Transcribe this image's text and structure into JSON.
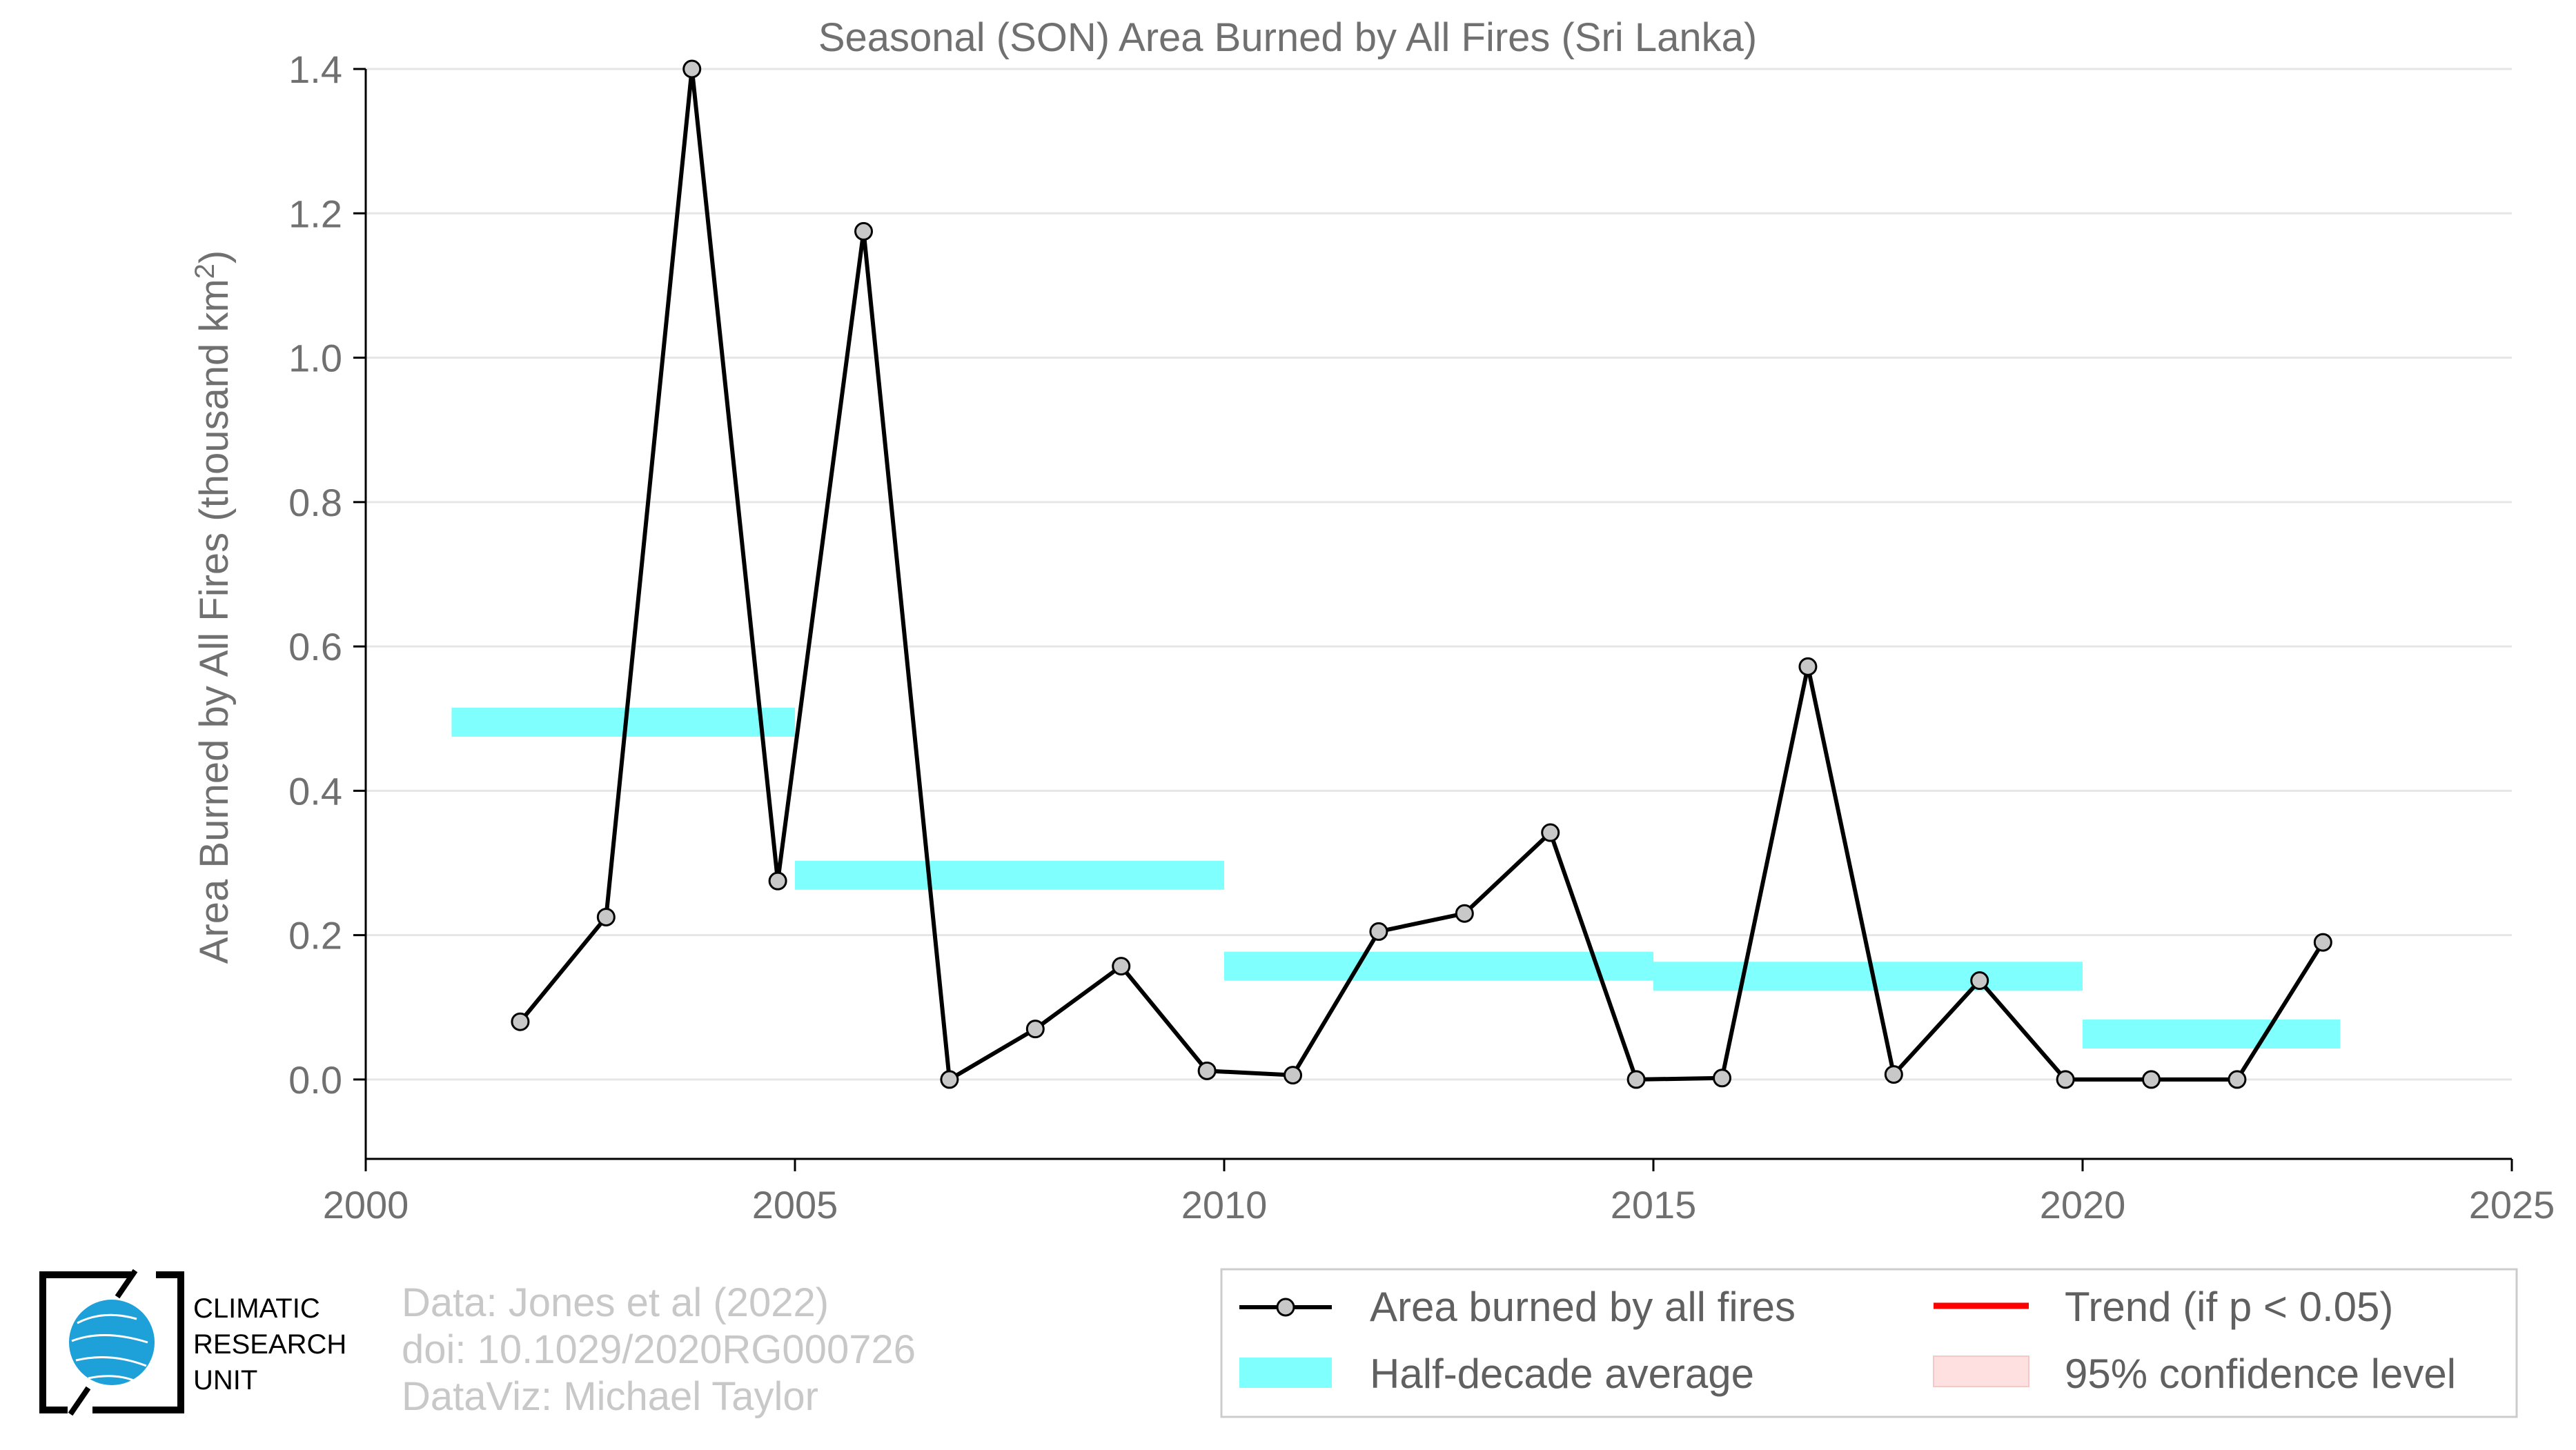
{
  "chart_data": {
    "type": "line",
    "title": "Seasonal (SON) Area Burned by All Fires (Sri Lanka)",
    "xlabel": "",
    "ylabel": "Area Burned by All Fires (thousand km",
    "ylabel_sup": "2",
    "ylabel_end": ")",
    "xlim": [
      2000,
      2025
    ],
    "ylim": [
      -0.11,
      1.4
    ],
    "xticks": [
      "2000",
      "2005",
      "2010",
      "2015",
      "2020",
      "2025"
    ],
    "yticks": [
      "0.0",
      "0.2",
      "0.4",
      "0.6",
      "0.8",
      "1.0",
      "1.2",
      "1.4"
    ],
    "grid": true,
    "legend_position": "bottom-right",
    "series": [
      {
        "name": "Area burned by all fires",
        "color": "#000000",
        "marker_fill": "#c8c8c8",
        "x": [
          2001.8,
          2002.8,
          2003.8,
          2004.8,
          2005.8,
          2006.8,
          2007.8,
          2008.8,
          2009.8,
          2010.8,
          2011.8,
          2012.8,
          2013.8,
          2014.8,
          2015.8,
          2016.8,
          2017.8,
          2018.8,
          2019.8,
          2020.8,
          2021.8,
          2022.8
        ],
        "values": [
          0.08,
          0.225,
          1.4,
          0.275,
          1.175,
          0.0,
          0.07,
          0.157,
          0.012,
          0.006,
          0.205,
          0.23,
          0.342,
          0.0,
          0.002,
          0.572,
          0.007,
          0.137,
          0.0,
          0.0,
          0.0,
          0.19
        ]
      }
    ],
    "half_decade_average": {
      "name": "Half-decade average",
      "color": "#80ffff",
      "segments": [
        {
          "x0": 2001,
          "x1": 2005,
          "value": 0.495
        },
        {
          "x0": 2005,
          "x1": 2010,
          "value": 0.283
        },
        {
          "x0": 2010,
          "x1": 2015,
          "value": 0.157
        },
        {
          "x0": 2015,
          "x1": 2020,
          "value": 0.143
        },
        {
          "x0": 2020,
          "x1": 2023,
          "value": 0.063
        }
      ]
    },
    "legend": [
      {
        "label": "Area burned by all fires",
        "kind": "line-marker",
        "color": "#000000"
      },
      {
        "label": "Half-decade average",
        "kind": "band",
        "color": "#80ffff"
      },
      {
        "label": "Trend (if p < 0.05)",
        "kind": "line",
        "color": "#ff0000"
      },
      {
        "label": "95% confidence level",
        "kind": "band",
        "color": "#ffe0e0"
      }
    ]
  },
  "credits": [
    "Data: Jones et al (2022)",
    "doi: 10.1029/2020RG000726",
    "DataViz: Michael Taylor"
  ],
  "logo": {
    "lines": [
      "CLIMATIC",
      "RESEARCH",
      "UNIT"
    ],
    "color": "#1ea0d8"
  }
}
